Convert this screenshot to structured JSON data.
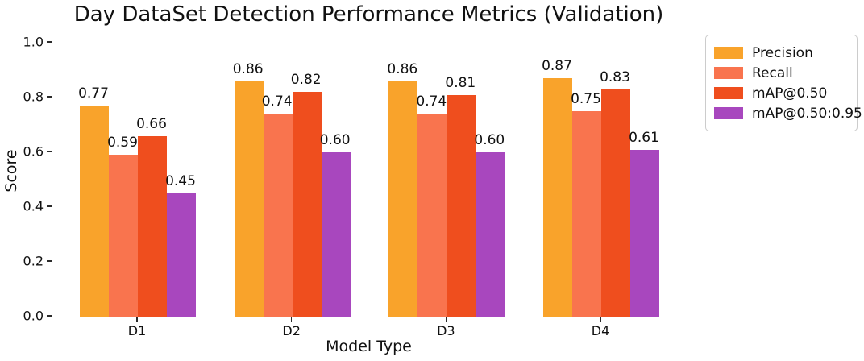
{
  "chart_data": {
    "type": "bar",
    "title": "Day DataSet Detection Performance Metrics (Validation)",
    "xlabel": "Model Type",
    "ylabel": "Score",
    "categories": [
      "D1",
      "D2",
      "D3",
      "D4"
    ],
    "series": [
      {
        "name": "Precision",
        "color": "#F9A32B",
        "values": [
          0.77,
          0.86,
          0.86,
          0.87
        ]
      },
      {
        "name": "Recall",
        "color": "#F9744E",
        "values": [
          0.59,
          0.74,
          0.74,
          0.75
        ]
      },
      {
        "name": "mAP@0.50",
        "color": "#EF4E1E",
        "values": [
          0.66,
          0.82,
          0.81,
          0.83
        ]
      },
      {
        "name": "mAP@0.50:0.95",
        "color": "#A847BE",
        "values": [
          0.45,
          0.6,
          0.6,
          0.61
        ]
      }
    ],
    "y_ticks": [
      0.0,
      0.2,
      0.4,
      0.6,
      0.8,
      1.0
    ],
    "y_tick_labels": [
      "0.0",
      "0.2",
      "0.4",
      "0.6",
      "0.8",
      "1.0"
    ],
    "ylim": [
      0,
      1.056
    ],
    "value_label_decimals": 2,
    "grid": false,
    "legend_position": "outside-right",
    "axis_color": "#2b2b2b"
  }
}
